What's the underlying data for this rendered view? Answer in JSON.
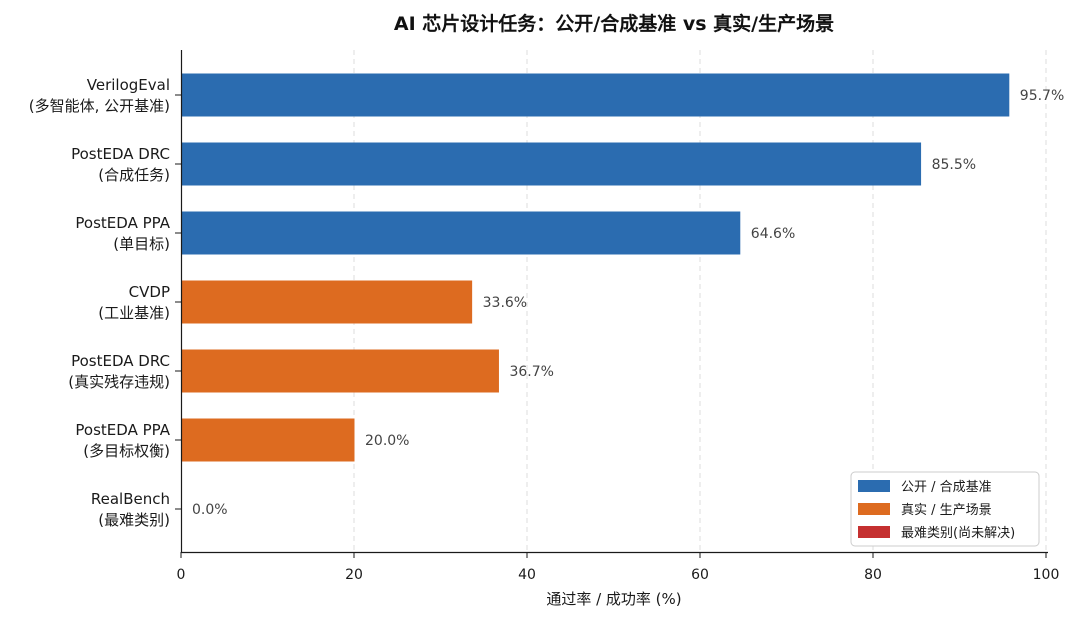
{
  "chart_data": {
    "type": "bar",
    "orientation": "horizontal",
    "title": "AI 芯片设计任务：公开/合成基准 vs 真实/生产场景",
    "xlabel": "通过率 / 成功率 (%)",
    "xlim": [
      0,
      100
    ],
    "xticks": [
      "0",
      "20",
      "40",
      "60",
      "80",
      "100"
    ],
    "grid": "vertical dashed",
    "legend_position": "bottom-right",
    "legend": [
      {
        "label": "公开 / 合成基准",
        "color": "#2b6cb0"
      },
      {
        "label": "真实 / 生产场景",
        "color": "#dd6b20"
      },
      {
        "label": "最难类别(尚未解决)",
        "color": "#c53030"
      }
    ],
    "categories": [
      {
        "line1": "VerilogEval",
        "line2": "(多智能体, 公开基准)",
        "value": 95.7,
        "value_label": "95.7%",
        "group": 0
      },
      {
        "line1": "PostEDA DRC",
        "line2": "(合成任务)",
        "value": 85.5,
        "value_label": "85.5%",
        "group": 0
      },
      {
        "line1": "PostEDA PPA",
        "line2": "(单目标)",
        "value": 64.6,
        "value_label": "64.6%",
        "group": 0
      },
      {
        "line1": "CVDP",
        "line2": "(工业基准)",
        "value": 33.6,
        "value_label": "33.6%",
        "group": 1
      },
      {
        "line1": "PostEDA DRC",
        "line2": "(真实残存违规)",
        "value": 36.7,
        "value_label": "36.7%",
        "group": 1
      },
      {
        "line1": "PostEDA PPA",
        "line2": "(多目标权衡)",
        "value": 20.0,
        "value_label": "20.0%",
        "group": 1
      },
      {
        "line1": "RealBench",
        "line2": "(最难类别)",
        "value": 0.0,
        "value_label": "0.0%",
        "group": 2
      }
    ]
  }
}
